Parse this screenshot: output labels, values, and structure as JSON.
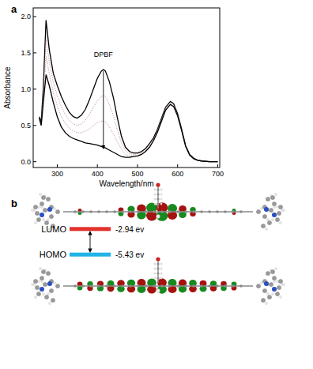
{
  "chart_data": {
    "type": "line",
    "title": "a",
    "x_label": "Wavelength/nm",
    "y_label": "Absorbance",
    "xlim": [
      240,
      705
    ],
    "xticks": [
      300,
      400,
      500,
      600,
      700
    ],
    "ylim": [
      -0.08,
      2.12
    ],
    "yticks": [
      {
        "value": 0,
        "label": "0.0"
      },
      0.5,
      {
        "value": 1,
        "label": "1.0"
      },
      1.5,
      {
        "value": 2,
        "label": "2.0"
      }
    ],
    "grid": false,
    "x": [
      255,
      260,
      265,
      272,
      280,
      290,
      300,
      310,
      320,
      330,
      340,
      350,
      360,
      370,
      380,
      390,
      400,
      410,
      415,
      420,
      430,
      440,
      450,
      460,
      470,
      480,
      490,
      500,
      510,
      520,
      530,
      540,
      550,
      560,
      570,
      582,
      590,
      600,
      610,
      620,
      630,
      640,
      650,
      660,
      680,
      700
    ],
    "series": [
      {
        "color": "#000000",
        "line_style": "solid",
        "values": [
          0.62,
          0.55,
          1.0,
          1.95,
          1.55,
          1.22,
          1.05,
          0.9,
          0.78,
          0.68,
          0.62,
          0.6,
          0.64,
          0.72,
          0.85,
          1.0,
          1.15,
          1.25,
          1.27,
          1.25,
          1.1,
          0.88,
          0.6,
          0.35,
          0.2,
          0.14,
          0.12,
          0.12,
          0.14,
          0.18,
          0.25,
          0.33,
          0.45,
          0.6,
          0.75,
          0.83,
          0.8,
          0.66,
          0.45,
          0.22,
          0.1,
          0.05,
          0.02,
          0.01,
          0,
          0
        ]
      },
      {
        "color": "#b07878",
        "line_style": "dotted",
        "values": [
          0.61,
          0.53,
          0.93,
          1.7,
          1.38,
          1.09,
          0.91,
          0.76,
          0.65,
          0.57,
          0.52,
          0.5,
          0.52,
          0.57,
          0.65,
          0.75,
          0.84,
          0.9,
          0.91,
          0.9,
          0.79,
          0.63,
          0.43,
          0.26,
          0.15,
          0.11,
          0.1,
          0.11,
          0.13,
          0.17,
          0.23,
          0.32,
          0.44,
          0.59,
          0.74,
          0.82,
          0.79,
          0.65,
          0.44,
          0.22,
          0.1,
          0.05,
          0.02,
          0.01,
          0,
          0
        ]
      },
      {
        "color": "#b07878",
        "line_style": "dotted",
        "values": [
          0.6,
          0.51,
          0.87,
          1.45,
          1.22,
          0.96,
          0.77,
          0.62,
          0.53,
          0.46,
          0.42,
          0.4,
          0.4,
          0.42,
          0.45,
          0.5,
          0.54,
          0.56,
          0.56,
          0.55,
          0.48,
          0.38,
          0.27,
          0.17,
          0.1,
          0.08,
          0.08,
          0.09,
          0.11,
          0.15,
          0.21,
          0.3,
          0.42,
          0.57,
          0.72,
          0.8,
          0.77,
          0.64,
          0.43,
          0.21,
          0.09,
          0.04,
          0.02,
          0.01,
          0,
          0
        ]
      },
      {
        "color": "#000000",
        "line_style": "solid",
        "values": [
          0.6,
          0.5,
          0.8,
          1.2,
          1.05,
          0.82,
          0.62,
          0.48,
          0.4,
          0.35,
          0.32,
          0.3,
          0.28,
          0.26,
          0.25,
          0.24,
          0.23,
          0.21,
          0.2,
          0.19,
          0.16,
          0.13,
          0.1,
          0.07,
          0.06,
          0.06,
          0.07,
          0.08,
          0.1,
          0.14,
          0.2,
          0.29,
          0.41,
          0.56,
          0.71,
          0.79,
          0.76,
          0.63,
          0.43,
          0.21,
          0.09,
          0.04,
          0.02,
          0.01,
          0,
          0
        ]
      }
    ],
    "annotations": [
      {
        "text": "DPBF",
        "x": 415,
        "y": 1.45
      }
    ]
  },
  "diagram": {
    "label": "b",
    "levels": [
      {
        "name": "LUMO",
        "energy": -2.94,
        "energy_label": "-2.94 ev",
        "color": "#e3322b"
      },
      {
        "name": "HOMO",
        "energy": -5.43,
        "energy_label": "-5.43 ev",
        "color": "#22b4e6"
      }
    ]
  }
}
